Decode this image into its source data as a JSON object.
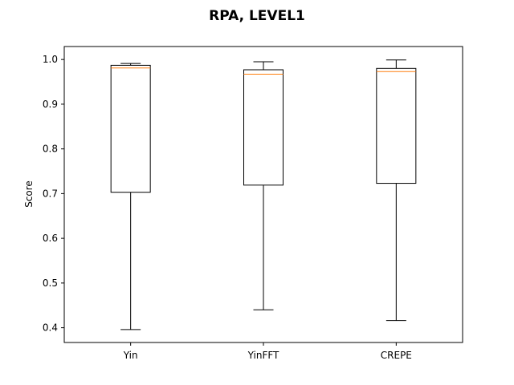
{
  "chart_data": {
    "type": "boxplot",
    "title": "RPA, LEVEL1",
    "xlabel": "",
    "ylabel": "Score",
    "ylim": [
      0.367,
      1.029
    ],
    "yticks": [
      0.4,
      0.5,
      0.6,
      0.7,
      0.8,
      0.9,
      1.0
    ],
    "ytick_labels": [
      "0.4",
      "0.5",
      "0.6",
      "0.7",
      "0.8",
      "0.9",
      "1.0"
    ],
    "categories": [
      "Yin",
      "YinFFT",
      "CREPE"
    ],
    "boxes": [
      {
        "name": "Yin",
        "whislo": 0.396,
        "q1": 0.703,
        "med": 0.981,
        "q3": 0.987,
        "whishi": 0.991
      },
      {
        "name": "YinFFT",
        "whislo": 0.44,
        "q1": 0.719,
        "med": 0.967,
        "q3": 0.977,
        "whishi": 0.995
      },
      {
        "name": "CREPE",
        "whislo": 0.416,
        "q1": 0.723,
        "med": 0.973,
        "q3": 0.98,
        "whishi": 0.999
      }
    ],
    "grid": false,
    "colors": {
      "box": "#000000",
      "median": "#ff7f0e"
    }
  }
}
